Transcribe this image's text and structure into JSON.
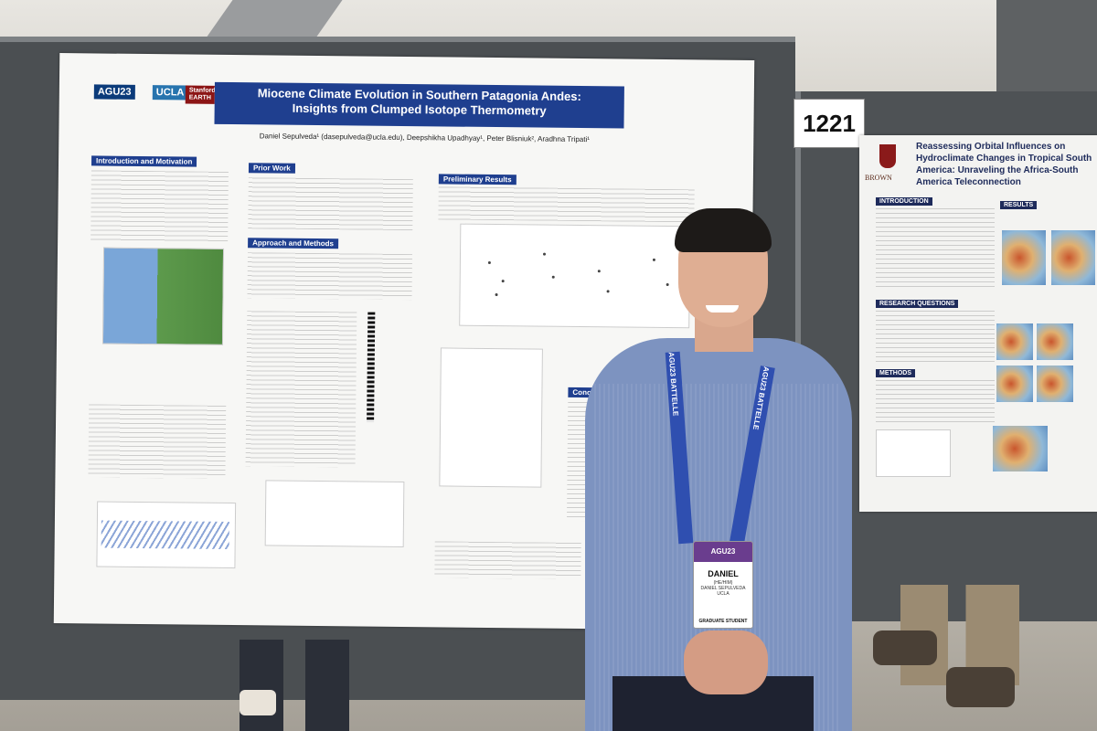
{
  "scene": {
    "booth_number": "1221"
  },
  "poster_main": {
    "logos": [
      "AGU23",
      "UCLA",
      "Stanford EARTH"
    ],
    "title_line1": "Miocene Climate Evolution in Southern Patagonia Andes:",
    "title_line2": "Insights from Clumped Isotope Thermometry",
    "authors": "Daniel Sepulveda¹ (dasepulveda@ucla.edu), Deepshikha Upadhyay¹, Peter Blisniuk², Aradhna Tripati¹",
    "sections": {
      "intro": "Introduction and Motivation",
      "prior": "Prior Work",
      "approach": "Approach and Methods",
      "results": "Preliminary Results",
      "conclusions": "Concluding"
    }
  },
  "poster_right": {
    "title": "Reassessing Orbital Influences on Hydroclimate Changes in Tropical South America: Unraveling the Africa-South America Teleconnection",
    "institution": "BROWN",
    "sections": {
      "intro": "INTRODUCTION",
      "questions": "RESEARCH QUESTIONS",
      "methods": "METHODS",
      "results": "RESULTS"
    }
  },
  "person": {
    "lanyard_text": "AGU23 BATTELLE",
    "badge": {
      "event": "AGU23",
      "name": "DANIEL",
      "pronouns": "(HE/HIM)",
      "full_name": "DANIEL SEPULVEDA",
      "institution": "UCLA",
      "role": "GRADUATE STUDENT"
    }
  }
}
